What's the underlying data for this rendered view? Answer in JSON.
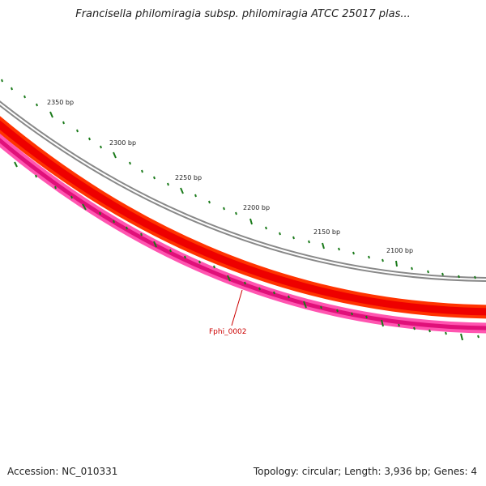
{
  "title": "Francisella philomiragia subsp. philomiragia ATCC 25017 plas...",
  "footer": {
    "accession": "Accession: NC_010331",
    "summary": "Topology: circular; Length: 3,936 bp; Genes: 4"
  },
  "ticks": [
    {
      "label": "2350 bp"
    },
    {
      "label": "2300 bp"
    },
    {
      "label": "2250 bp"
    },
    {
      "label": "2200 bp"
    },
    {
      "label": "2150 bp"
    },
    {
      "label": "2100 bp"
    }
  ],
  "genes": [
    {
      "label": "Fphi_0002"
    }
  ],
  "colors": {
    "backbone": "#808080",
    "gene_track": "#ff0000",
    "gene_track_edge": "#cc0000",
    "pink_track": "#ff4daa",
    "pink_track_edge": "#cc1177",
    "tick": "#1a7a1a",
    "gene_label": "#cc0000"
  }
}
